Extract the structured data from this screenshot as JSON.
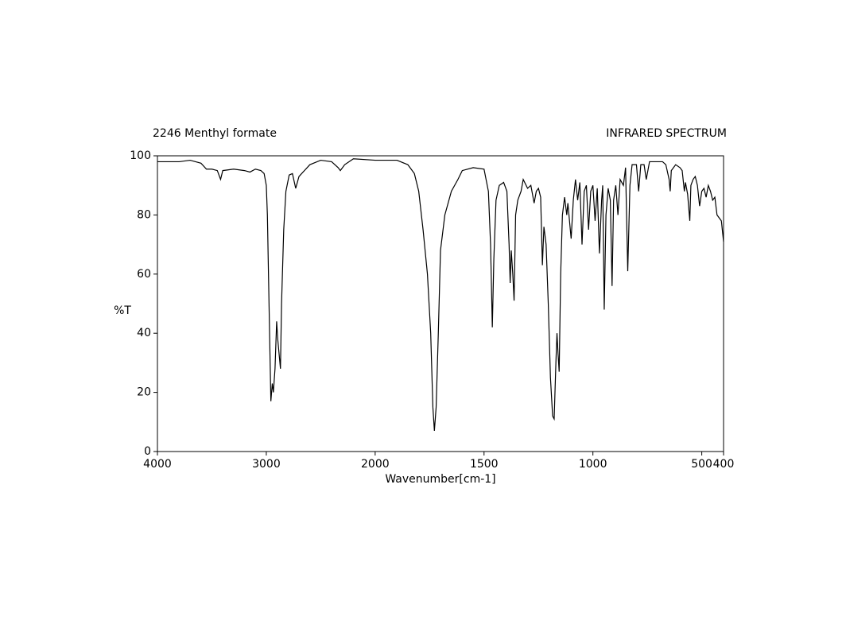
{
  "chart_data": {
    "type": "line",
    "title": "2246 Menthyl formate",
    "subtitle": "INFRARED SPECTRUM",
    "xlabel": "Wavenumber[cm-1]",
    "ylabel": "%T",
    "xlim": [
      4000,
      400
    ],
    "ylim": [
      0,
      100
    ],
    "xticks": [
      4000,
      3000,
      2000,
      1500,
      1000,
      500,
      400
    ],
    "yticks": [
      0,
      20,
      40,
      60,
      80,
      100
    ],
    "xscale": {
      "break": 2000,
      "ratio": 2
    },
    "grid": false,
    "series": [
      {
        "name": "Menthyl formate",
        "color": "#000000",
        "x": [
          4000,
          3800,
          3700,
          3600,
          3550,
          3500,
          3450,
          3420,
          3400,
          3300,
          3200,
          3150,
          3100,
          3050,
          3020,
          3000,
          2990,
          2975,
          2958,
          2945,
          2935,
          2920,
          2905,
          2895,
          2870,
          2860,
          2840,
          2820,
          2790,
          2760,
          2730,
          2700,
          2650,
          2600,
          2500,
          2400,
          2340,
          2320,
          2280,
          2200,
          2000,
          1900,
          1850,
          1820,
          1800,
          1780,
          1760,
          1745,
          1735,
          1728,
          1720,
          1710,
          1700,
          1680,
          1650,
          1620,
          1600,
          1550,
          1500,
          1480,
          1470,
          1462,
          1455,
          1445,
          1430,
          1410,
          1395,
          1385,
          1380,
          1375,
          1368,
          1362,
          1355,
          1345,
          1330,
          1320,
          1300,
          1285,
          1270,
          1260,
          1250,
          1240,
          1232,
          1225,
          1215,
          1205,
          1195,
          1185,
          1178,
          1170,
          1165,
          1160,
          1155,
          1148,
          1140,
          1130,
          1120,
          1115,
          1100,
          1090,
          1080,
          1070,
          1060,
          1050,
          1040,
          1030,
          1020,
          1010,
          1000,
          990,
          980,
          970,
          960,
          955,
          948,
          940,
          930,
          920,
          912,
          905,
          895,
          885,
          875,
          860,
          850,
          840,
          830,
          820,
          800,
          790,
          780,
          765,
          755,
          740,
          700,
          680,
          665,
          650,
          645,
          640,
          620,
          600,
          590,
          580,
          575,
          565,
          555,
          550,
          540,
          530,
          520,
          510,
          500,
          490,
          480,
          470,
          460,
          450,
          440,
          430,
          410,
          400
        ],
        "values": [
          98,
          98,
          98.5,
          97.5,
          95.5,
          95.5,
          95,
          92,
          95,
          95.5,
          95,
          94.5,
          95.5,
          95,
          94,
          90,
          80,
          50,
          17,
          23,
          20,
          28,
          44,
          38,
          28,
          50,
          75,
          88,
          93.5,
          94,
          89,
          93,
          95,
          97,
          98.5,
          98,
          96,
          95,
          97,
          99,
          98.5,
          98.5,
          97,
          94,
          88,
          75,
          60,
          40,
          15,
          7,
          15,
          40,
          68,
          80,
          88,
          92,
          95,
          96,
          95.5,
          88,
          70,
          42,
          65,
          85,
          90,
          91,
          88,
          70,
          57,
          68,
          60,
          51,
          80,
          85,
          88,
          92,
          89,
          90,
          84,
          88,
          89,
          86,
          63,
          76,
          70,
          50,
          25,
          12,
          11,
          30,
          40,
          33,
          27,
          60,
          80,
          86,
          80,
          84,
          72,
          85,
          92,
          85,
          91,
          70,
          88,
          90,
          75,
          88,
          90,
          78,
          89,
          67,
          85,
          90,
          48,
          80,
          89,
          85,
          56,
          85,
          90,
          80,
          92,
          90,
          96,
          61,
          90,
          97,
          97,
          88,
          97,
          97,
          92,
          98,
          98,
          98,
          97,
          92,
          88,
          95,
          97,
          96,
          95,
          88,
          91,
          87,
          78,
          90,
          92,
          93,
          90,
          83,
          88,
          89,
          86,
          90,
          88,
          85,
          86,
          80,
          78,
          71
        ]
      }
    ]
  }
}
